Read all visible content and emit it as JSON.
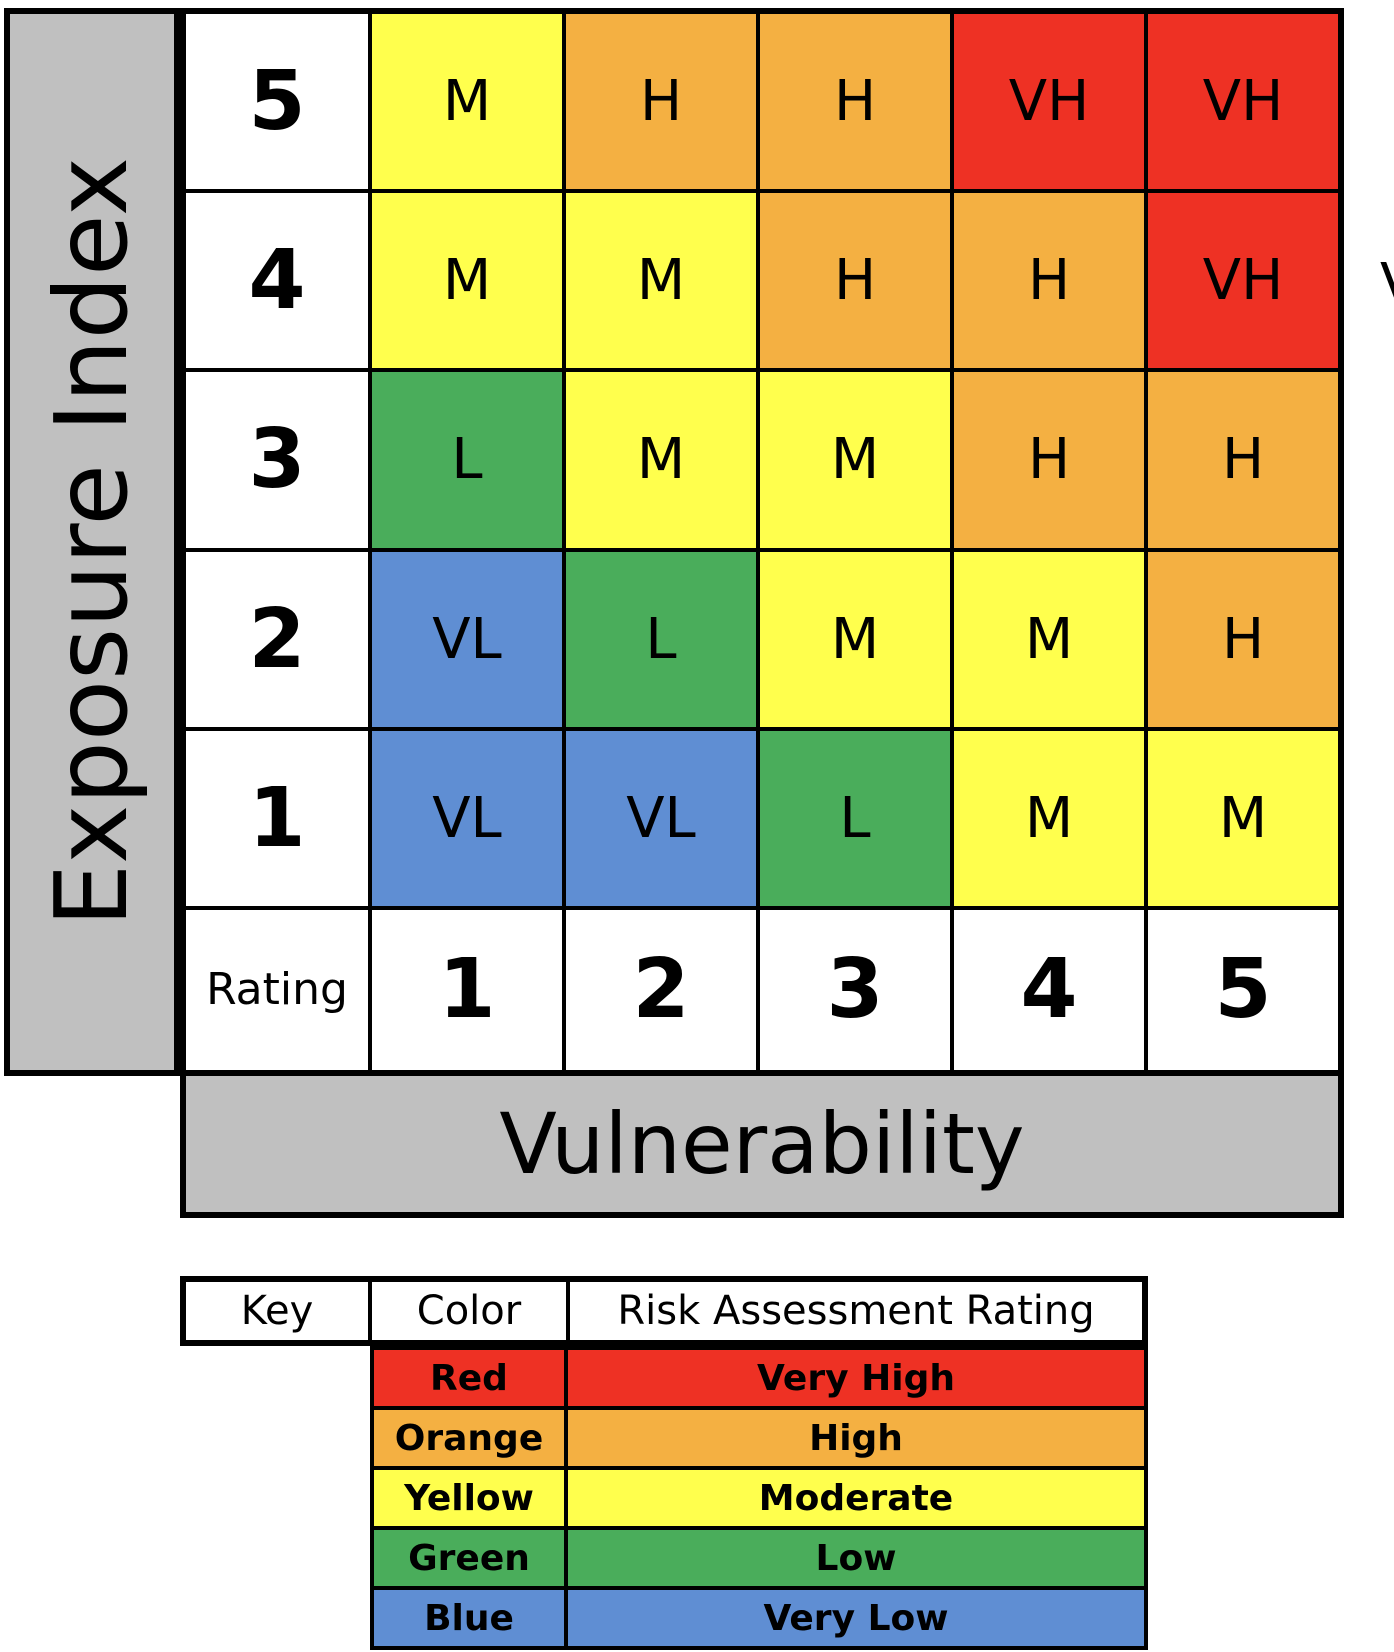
{
  "axes": {
    "y_title": "Exposure Index",
    "x_title": "Vulnerability",
    "header_label": "Rating",
    "rows": [
      "5",
      "4",
      "3",
      "2",
      "1"
    ],
    "cols": [
      "1",
      "2",
      "3",
      "4",
      "5"
    ]
  },
  "colors": {
    "VH": "#ee3124",
    "H": "#f4b042",
    "M": "#ffff4d",
    "L": "#4aad5b",
    "VL": "#5f8ed3"
  },
  "matrix": [
    [
      "M",
      "H",
      "H",
      "VH",
      "VH"
    ],
    [
      "M",
      "M",
      "H",
      "H",
      "VH"
    ],
    [
      "L",
      "M",
      "M",
      "H",
      "H"
    ],
    [
      "VL",
      "L",
      "M",
      "M",
      "H"
    ],
    [
      "VL",
      "VL",
      "L",
      "M",
      "M"
    ]
  ],
  "clipped_glyph": "V",
  "key": {
    "headers": [
      "Key",
      "Color",
      "Risk Assessment Rating"
    ],
    "rows": [
      {
        "color": "Red",
        "rating": "Very High",
        "fill": "#ee3124"
      },
      {
        "color": "Orange",
        "rating": "High",
        "fill": "#f4b042"
      },
      {
        "color": "Yellow",
        "rating": "Moderate",
        "fill": "#ffff4d"
      },
      {
        "color": "Green",
        "rating": "Low",
        "fill": "#4aad5b"
      },
      {
        "color": "Blue",
        "rating": "Very Low",
        "fill": "#5f8ed3"
      }
    ]
  }
}
